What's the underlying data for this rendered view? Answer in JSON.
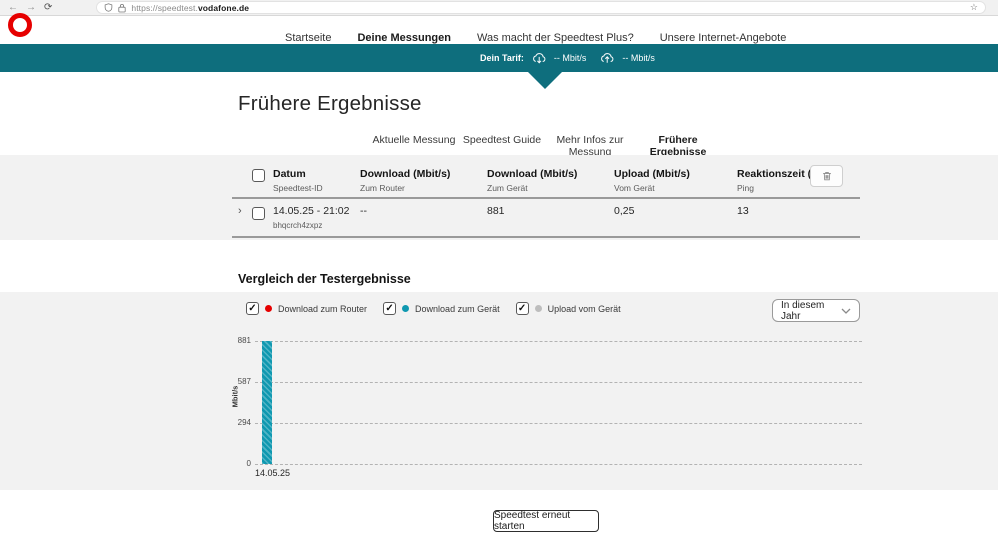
{
  "browser": {
    "url_prefix": "https://speedtest.",
    "url_domain": "vodafone.de"
  },
  "nav": {
    "items": [
      "Startseite",
      "Deine Messungen",
      "Was macht der Speedtest Plus?",
      "Unsere Internet-Angebote"
    ],
    "active": "Deine Messungen"
  },
  "tariff_banner": {
    "label": "Dein Tarif:",
    "download_value": "-- Mbit/s",
    "upload_value": "-- Mbit/s"
  },
  "page": {
    "title": "Frühere Ergebnisse"
  },
  "tabs": [
    {
      "label": "Aktuelle Messung",
      "active": false
    },
    {
      "label": "Speedtest Guide",
      "active": false
    },
    {
      "label": "Mehr Infos zur Messung",
      "active": false
    },
    {
      "label": "Frühere Ergebnisse",
      "active": true
    }
  ],
  "results_table": {
    "columns": [
      {
        "title": "Datum",
        "subtitle": "Speedtest-ID"
      },
      {
        "title": "Download (Mbit/s)",
        "subtitle": "Zum Router"
      },
      {
        "title": "Download (Mbit/s)",
        "subtitle": "Zum Gerät"
      },
      {
        "title": "Upload (Mbit/s)",
        "subtitle": "Vom Gerät"
      },
      {
        "title": "Reaktionszeit (ms)",
        "subtitle": "Ping"
      }
    ],
    "rows": [
      {
        "datetime": "14.05.25 - 21:02",
        "speedtest_id": "bhqcrch4zxpz",
        "download_router": "--",
        "download_device": "881",
        "upload_device": "0,25",
        "ping": "13",
        "selected": false
      }
    ],
    "header_checkbox_checked": false
  },
  "comparison": {
    "heading": "Vergleich der Testergebnisse",
    "legend": [
      {
        "label": "Download zum Router",
        "color": "#e60000",
        "checked": true
      },
      {
        "label": "Download zum Gerät",
        "color": "#0f98b0",
        "checked": true
      },
      {
        "label": "Upload vom Gerät",
        "color": "#bdbdbd",
        "checked": true
      }
    ],
    "period_select": {
      "value": "In diesem Jahr"
    }
  },
  "chart_data": {
    "type": "bar",
    "categories": [
      "14.05.25"
    ],
    "series": [
      {
        "name": "Download zum Router",
        "color": "#e60000",
        "values": [
          null
        ]
      },
      {
        "name": "Download zum Gerät",
        "color": "#0f98b0",
        "values": [
          881
        ]
      },
      {
        "name": "Upload vom Gerät",
        "color": "#bdbdbd",
        "values": [
          0.25
        ]
      }
    ],
    "ylabel": "Mbit/s",
    "yticks": [
      "0",
      "294",
      "587",
      "881"
    ],
    "ylim": [
      0,
      881
    ],
    "grid": "horizontal-dashed",
    "legend_position": "top-left"
  },
  "footer": {
    "restart_button": "Speedtest erneut starten"
  },
  "theme": {
    "brand_red": "#e60000",
    "banner_teal": "#0e6e7d",
    "panel_gray": "#f2f2f2"
  }
}
